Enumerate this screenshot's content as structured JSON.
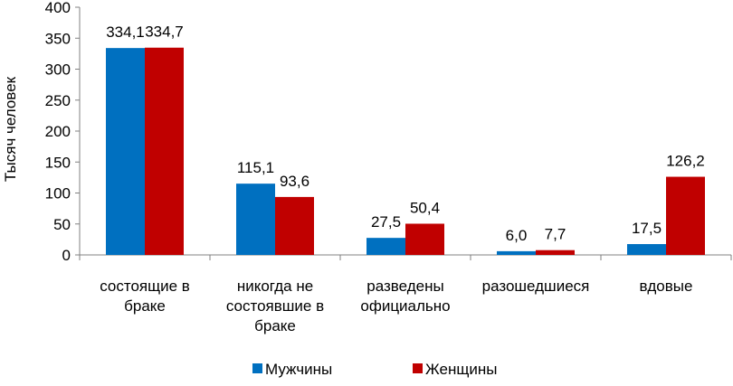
{
  "chart_data": {
    "type": "bar",
    "title": "",
    "ylabel": "Тысяч человек",
    "xlabel": "",
    "ylim": [
      0,
      400
    ],
    "yticks": [
      0,
      50,
      100,
      150,
      200,
      250,
      300,
      350,
      400
    ],
    "grid": false,
    "legend_position": "bottom",
    "categories": [
      [
        "состоящие в",
        "браке"
      ],
      [
        "никогда не",
        "состоявшие в",
        "браке"
      ],
      [
        "разведены",
        "официально"
      ],
      [
        "разошедшиеся"
      ],
      [
        "вдовые"
      ]
    ],
    "series": [
      {
        "name": "Мужчины",
        "color": "#0070C0",
        "values": [
          334.1,
          115.1,
          27.5,
          6.0,
          17.5
        ],
        "labels": [
          "334,1",
          "115,1",
          "27,5",
          "6,0",
          "17,5"
        ]
      },
      {
        "name": "Женщины",
        "color": "#C00000",
        "values": [
          334.7,
          93.6,
          50.4,
          7.7,
          126.2
        ],
        "labels": [
          "334,7",
          "93,6",
          "50,4",
          "7,7",
          "126,2"
        ]
      }
    ]
  }
}
